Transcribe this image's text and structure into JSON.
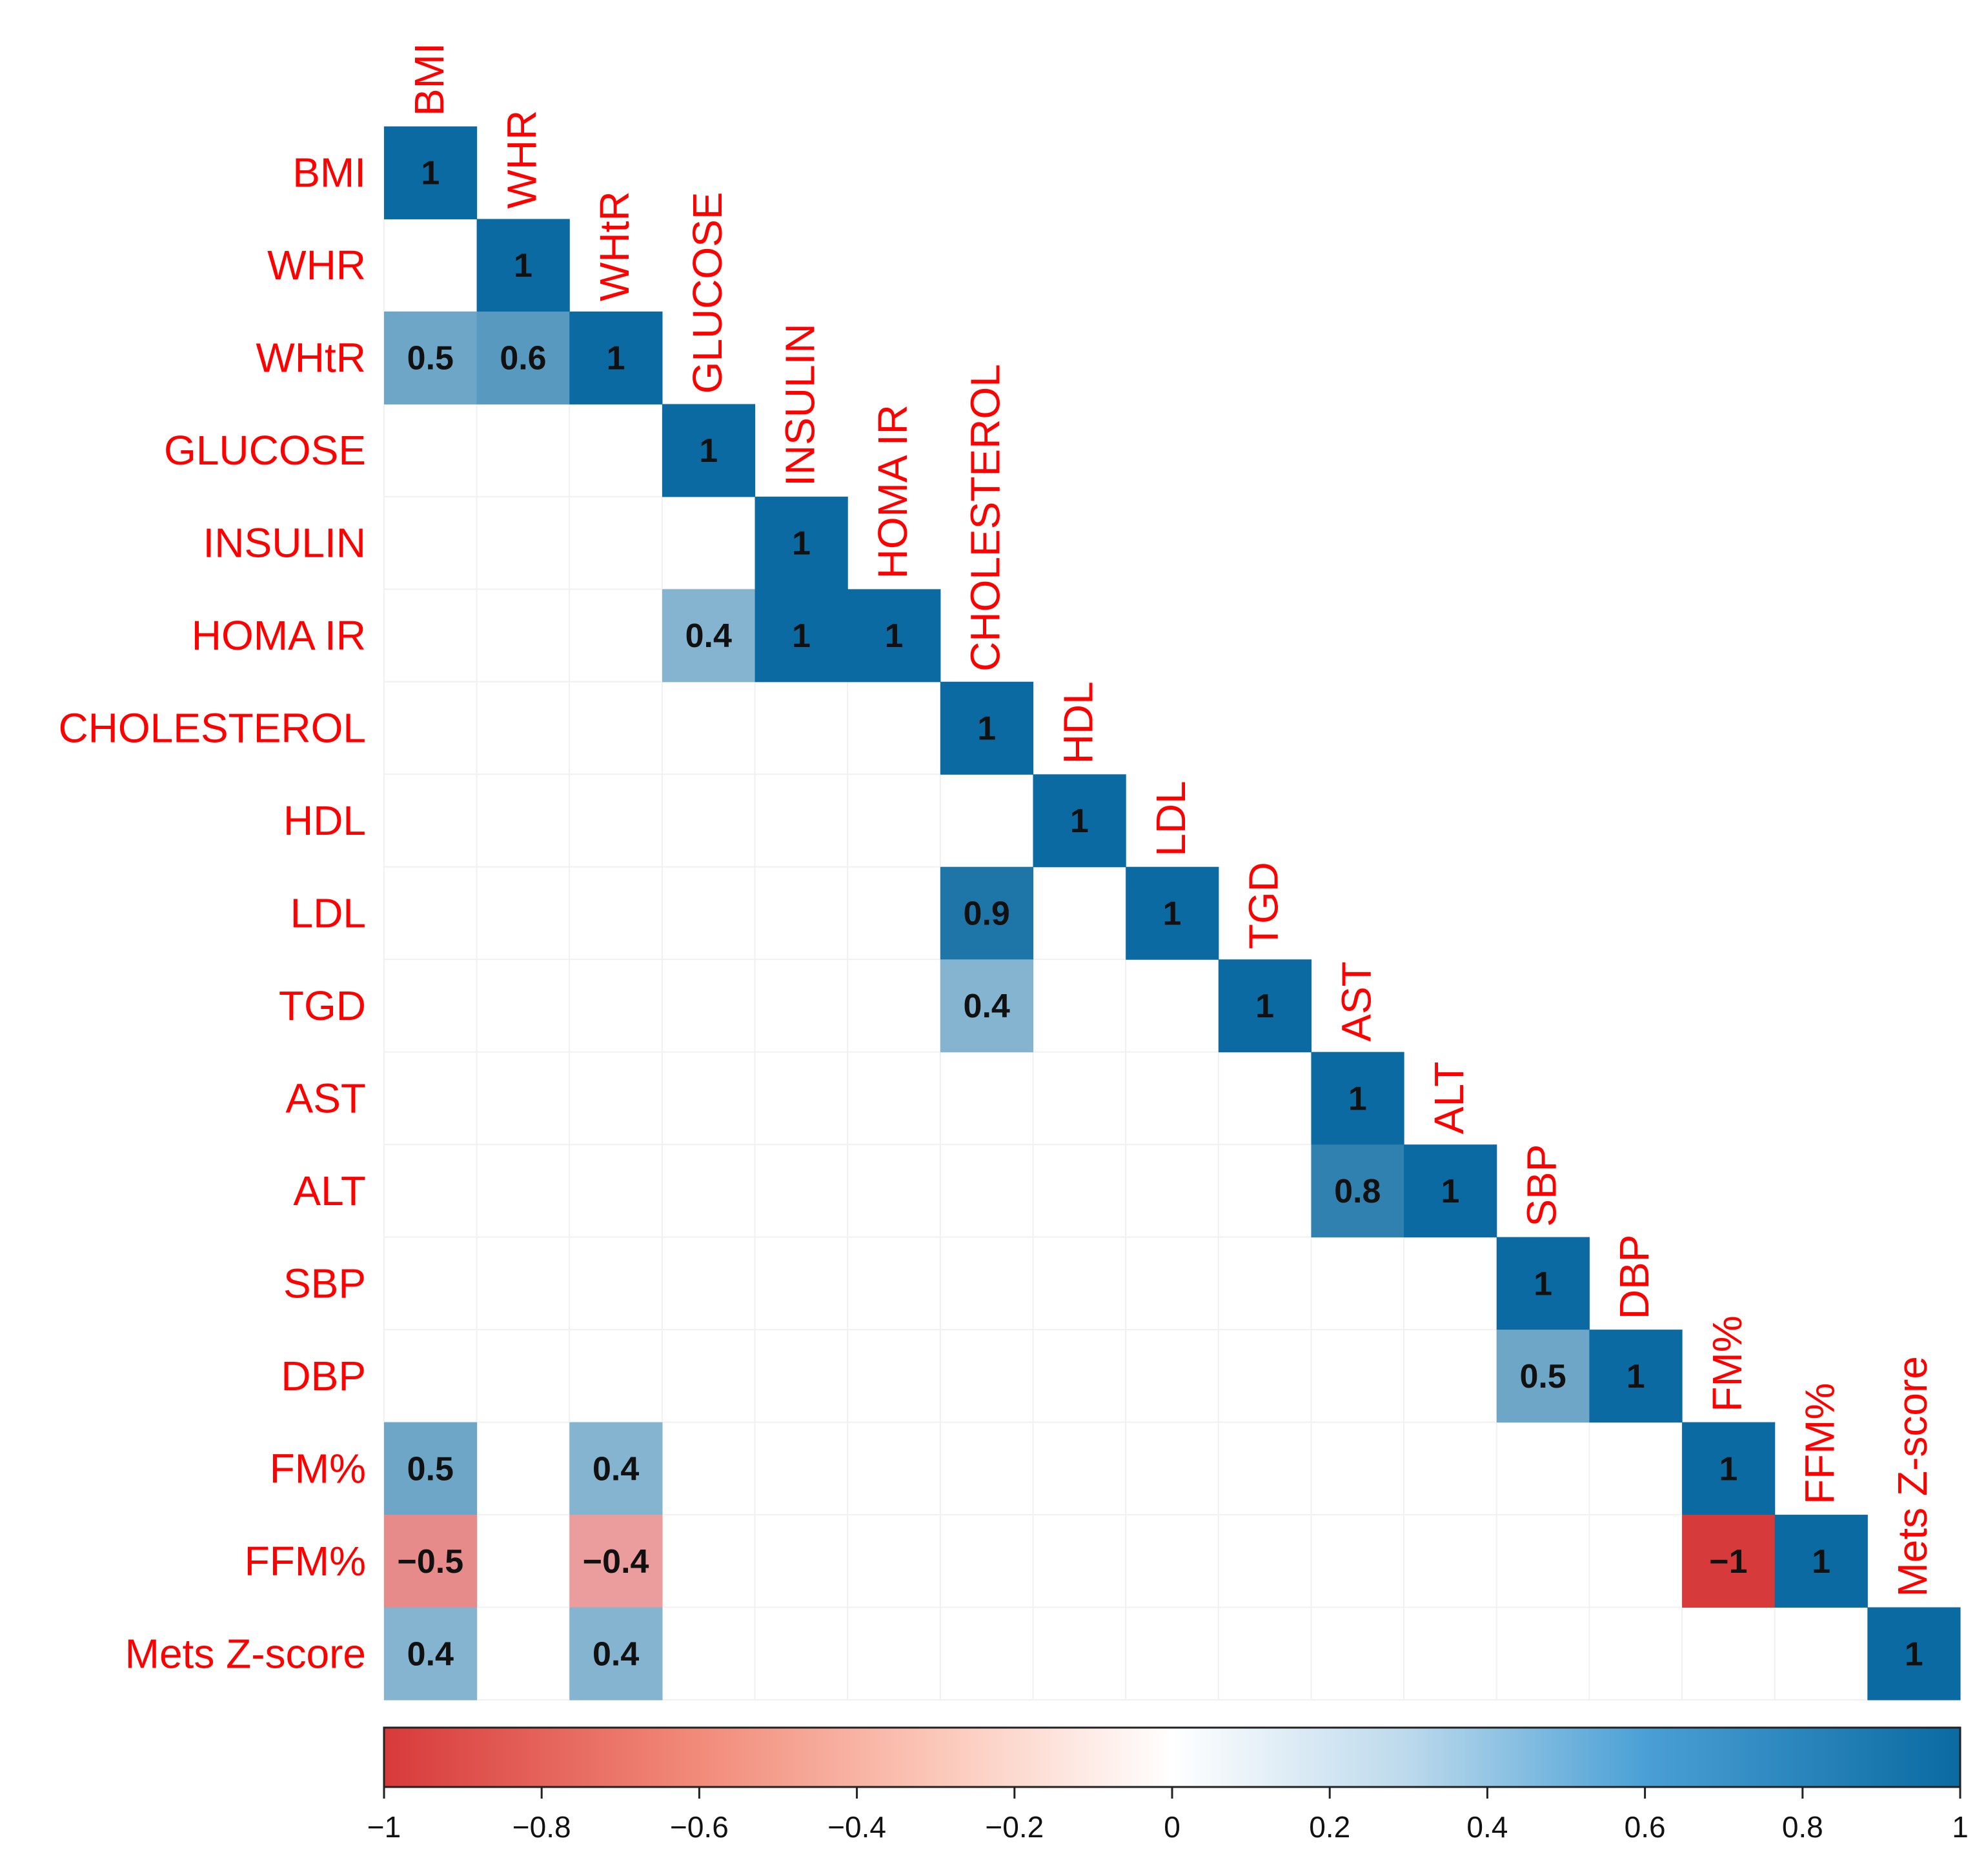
{
  "chart_data": {
    "type": "heatmap",
    "title": "",
    "variables": [
      "BMI",
      "WHR",
      "WHtR",
      "GLUCOSE",
      "INSULIN",
      "HOMA IR",
      "CHOLESTEROL",
      "HDL",
      "LDL",
      "TGD",
      "AST",
      "ALT",
      "SBP",
      "DBP",
      "FM%",
      "FFM%",
      "Mets Z-score"
    ],
    "layout": "lower-triangular",
    "cells": [
      {
        "row": "BMI",
        "col": "BMI",
        "value": 1,
        "label": "1"
      },
      {
        "row": "WHR",
        "col": "WHR",
        "value": 1,
        "label": "1"
      },
      {
        "row": "WHtR",
        "col": "BMI",
        "value": 0.5,
        "label": "0.5"
      },
      {
        "row": "WHtR",
        "col": "WHR",
        "value": 0.6,
        "label": "0.6"
      },
      {
        "row": "WHtR",
        "col": "WHtR",
        "value": 1,
        "label": "1"
      },
      {
        "row": "GLUCOSE",
        "col": "GLUCOSE",
        "value": 1,
        "label": "1"
      },
      {
        "row": "INSULIN",
        "col": "INSULIN",
        "value": 1,
        "label": "1"
      },
      {
        "row": "HOMA IR",
        "col": "GLUCOSE",
        "value": 0.4,
        "label": "0.4"
      },
      {
        "row": "HOMA IR",
        "col": "INSULIN",
        "value": 1,
        "label": "1"
      },
      {
        "row": "HOMA IR",
        "col": "HOMA IR",
        "value": 1,
        "label": "1"
      },
      {
        "row": "CHOLESTEROL",
        "col": "CHOLESTEROL",
        "value": 1,
        "label": "1"
      },
      {
        "row": "HDL",
        "col": "HDL",
        "value": 1,
        "label": "1"
      },
      {
        "row": "LDL",
        "col": "CHOLESTEROL",
        "value": 0.9,
        "label": "0.9"
      },
      {
        "row": "LDL",
        "col": "LDL",
        "value": 1,
        "label": "1"
      },
      {
        "row": "TGD",
        "col": "CHOLESTEROL",
        "value": 0.4,
        "label": "0.4"
      },
      {
        "row": "TGD",
        "col": "TGD",
        "value": 1,
        "label": "1"
      },
      {
        "row": "AST",
        "col": "AST",
        "value": 1,
        "label": "1"
      },
      {
        "row": "ALT",
        "col": "AST",
        "value": 0.8,
        "label": "0.8"
      },
      {
        "row": "ALT",
        "col": "ALT",
        "value": 1,
        "label": "1"
      },
      {
        "row": "SBP",
        "col": "SBP",
        "value": 1,
        "label": "1"
      },
      {
        "row": "DBP",
        "col": "SBP",
        "value": 0.5,
        "label": "0.5"
      },
      {
        "row": "DBP",
        "col": "DBP",
        "value": 1,
        "label": "1"
      },
      {
        "row": "FM%",
        "col": "BMI",
        "value": 0.5,
        "label": "0.5"
      },
      {
        "row": "FM%",
        "col": "WHtR",
        "value": 0.4,
        "label": "0.4"
      },
      {
        "row": "FM%",
        "col": "FM%",
        "value": 1,
        "label": "1"
      },
      {
        "row": "FFM%",
        "col": "BMI",
        "value": -0.5,
        "label": "−0.5"
      },
      {
        "row": "FFM%",
        "col": "WHtR",
        "value": -0.4,
        "label": "−0.4"
      },
      {
        "row": "FFM%",
        "col": "FM%",
        "value": -1,
        "label": "−1"
      },
      {
        "row": "FFM%",
        "col": "FFM%",
        "value": 1,
        "label": "1"
      },
      {
        "row": "Mets Z-score",
        "col": "BMI",
        "value": 0.4,
        "label": "0.4"
      },
      {
        "row": "Mets Z-score",
        "col": "WHtR",
        "value": 0.4,
        "label": "0.4"
      },
      {
        "row": "Mets Z-score",
        "col": "Mets Z-score",
        "value": 1,
        "label": "1"
      }
    ],
    "colorbar": {
      "range": [
        -1,
        1
      ],
      "ticks": [
        -1,
        -0.8,
        -0.6,
        -0.4,
        -0.2,
        0,
        0.2,
        0.4,
        0.6,
        0.8,
        1
      ],
      "tick_labels": [
        "−1",
        "−0.8",
        "−0.6",
        "−0.4",
        "−0.2",
        "0",
        "0.2",
        "0.4",
        "0.6",
        "0.8",
        "1"
      ],
      "placement": "bottom"
    },
    "colors": {
      "negative": "#d73a3a",
      "neutral": "#ffffff",
      "positive": "#0a6aa1",
      "label_color": "#ff0000",
      "value_text": "#111111"
    }
  }
}
